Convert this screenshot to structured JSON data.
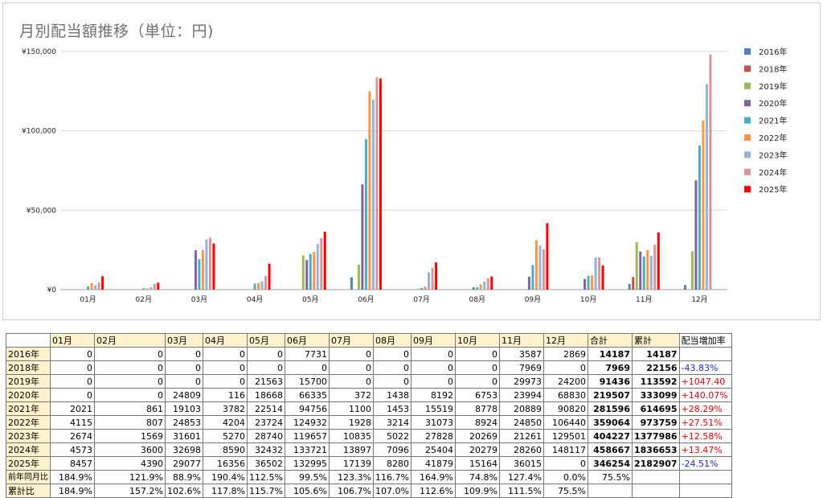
{
  "chart_data": {
    "type": "bar",
    "title": "月別配当額推移（単位：円)",
    "categories": [
      "01月",
      "02月",
      "03月",
      "04月",
      "05月",
      "06月",
      "07月",
      "08月",
      "09月",
      "10月",
      "11月",
      "12月"
    ],
    "y_ticks": [
      "¥0",
      "¥50,000",
      "¥100,000",
      "¥150,000"
    ],
    "ylim": [
      0,
      150000
    ],
    "grid": true,
    "legend_position": "right",
    "series": [
      {
        "name": "2016年",
        "color": "#4f81bd",
        "values": [
          0,
          0,
          0,
          0,
          0,
          7731,
          0,
          0,
          0,
          0,
          3587,
          2869
        ]
      },
      {
        "name": "2018年",
        "color": "#c0504d",
        "values": [
          0,
          0,
          0,
          0,
          0,
          0,
          0,
          0,
          0,
          0,
          7969,
          0
        ]
      },
      {
        "name": "2019年",
        "color": "#9bbb59",
        "values": [
          0,
          0,
          0,
          0,
          21563,
          15700,
          0,
          0,
          0,
          0,
          29973,
          24200
        ]
      },
      {
        "name": "2020年",
        "color": "#8064a2",
        "values": [
          0,
          0,
          24809,
          116,
          18668,
          66335,
          372,
          1438,
          8192,
          6753,
          23994,
          68830
        ]
      },
      {
        "name": "2021年",
        "color": "#4bacc6",
        "values": [
          2021,
          861,
          19103,
          3782,
          22514,
          94756,
          1100,
          1453,
          15519,
          8778,
          20889,
          90820
        ]
      },
      {
        "name": "2022年",
        "color": "#f79646",
        "values": [
          4115,
          807,
          24853,
          4204,
          23724,
          124932,
          1928,
          3214,
          31073,
          8924,
          24850,
          106440
        ]
      },
      {
        "name": "2023年",
        "color": "#95b3d7",
        "values": [
          2674,
          1569,
          31601,
          5270,
          28740,
          119657,
          10835,
          5022,
          27828,
          20269,
          21261,
          129501
        ]
      },
      {
        "name": "2024年",
        "color": "#da9694",
        "values": [
          4573,
          3600,
          32698,
          8590,
          32432,
          133721,
          13897,
          7096,
          25404,
          20279,
          28260,
          148117
        ]
      },
      {
        "name": "2025年",
        "color": "#ff0000",
        "values": [
          8457,
          4390,
          29077,
          16356,
          36502,
          132995,
          17139,
          8280,
          41879,
          15164,
          36015,
          0
        ]
      }
    ]
  },
  "table": {
    "headers": [
      "01月",
      "02月",
      "03月",
      "04月",
      "05月",
      "06月",
      "07月",
      "08月",
      "09月",
      "10月",
      "11月",
      "12月",
      "合計",
      "累計",
      "配当増加率"
    ],
    "rows": [
      {
        "label": "2016年",
        "values": [
          "0",
          "0",
          "0",
          "0",
          "0",
          "7731",
          "0",
          "0",
          "0",
          "0",
          "3587",
          "2869"
        ],
        "total": "14187",
        "cumulative": "14187",
        "rate": ""
      },
      {
        "label": "2018年",
        "values": [
          "0",
          "0",
          "0",
          "0",
          "0",
          "0",
          "0",
          "0",
          "0",
          "0",
          "7969",
          "0"
        ],
        "total": "7969",
        "cumulative": "22156",
        "rate": "-43.83%"
      },
      {
        "label": "2019年",
        "values": [
          "0",
          "0",
          "0",
          "0",
          "21563",
          "15700",
          "0",
          "0",
          "0",
          "0",
          "29973",
          "24200"
        ],
        "total": "91436",
        "cumulative": "113592",
        "rate": "+1047.40"
      },
      {
        "label": "2020年",
        "values": [
          "0",
          "0",
          "24809",
          "116",
          "18668",
          "66335",
          "372",
          "1438",
          "8192",
          "6753",
          "23994",
          "68830"
        ],
        "total": "219507",
        "cumulative": "333099",
        "rate": "+140.07%"
      },
      {
        "label": "2021年",
        "values": [
          "2021",
          "861",
          "19103",
          "3782",
          "22514",
          "94756",
          "1100",
          "1453",
          "15519",
          "8778",
          "20889",
          "90820"
        ],
        "total": "281596",
        "cumulative": "614695",
        "rate": "+28.29%"
      },
      {
        "label": "2022年",
        "values": [
          "4115",
          "807",
          "24853",
          "4204",
          "23724",
          "124932",
          "1928",
          "3214",
          "31073",
          "8924",
          "24850",
          "106440"
        ],
        "total": "359064",
        "cumulative": "973759",
        "rate": "+27.51%"
      },
      {
        "label": "2023年",
        "values": [
          "2674",
          "1569",
          "31601",
          "5270",
          "28740",
          "119657",
          "10835",
          "5022",
          "27828",
          "20269",
          "21261",
          "129501"
        ],
        "total": "404227",
        "cumulative": "1377986",
        "rate": "+12.58%"
      },
      {
        "label": "2024年",
        "values": [
          "4573",
          "3600",
          "32698",
          "8590",
          "32432",
          "133721",
          "13897",
          "7096",
          "25404",
          "20279",
          "28260",
          "148117"
        ],
        "total": "458667",
        "cumulative": "1836653",
        "rate": "+13.47%"
      },
      {
        "label": "2025年",
        "values": [
          "8457",
          "4390",
          "29077",
          "16356",
          "36502",
          "132995",
          "17139",
          "8280",
          "41879",
          "15164",
          "36015",
          "0"
        ],
        "total": "346254",
        "cumulative": "2182907",
        "rate": "-24.51%"
      }
    ],
    "yoy_label": "前年同月比",
    "yoy": [
      "184.9%",
      "121.9%",
      "88.9%",
      "190.4%",
      "112.5%",
      "99.5%",
      "123.3%",
      "116.7%",
      "164.9%",
      "74.8%",
      "127.4%",
      "0.0%",
      "75.5%"
    ],
    "cum_label": "累計比",
    "cum": [
      "184.9%",
      "157.2%",
      "102.6%",
      "117.8%",
      "115.7%",
      "105.6%",
      "106.7%",
      "107.0%",
      "112.6%",
      "109.9%",
      "111.5%",
      "75.5%"
    ]
  }
}
